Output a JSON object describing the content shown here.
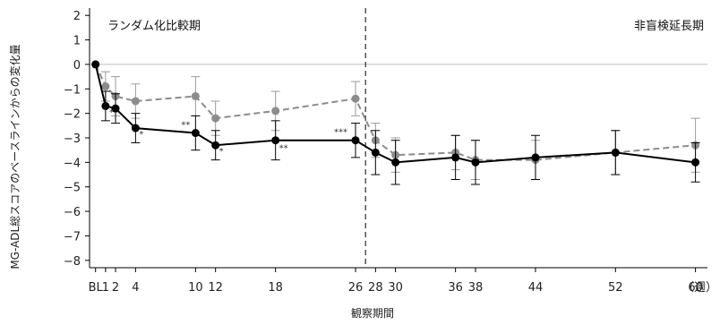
{
  "chart_data": {
    "type": "line",
    "ylabel": "MG-ADL総スコアのベースラインからの変化量",
    "xlabel": "観察期間",
    "x_unit_label": "（週）",
    "ylim": [
      -8.3,
      2.3
    ],
    "y_ticks": [
      2,
      1,
      0,
      -1,
      -2,
      -3,
      -4,
      -5,
      -6,
      -7,
      -8
    ],
    "y_tick_labels": [
      "2",
      "1",
      "0",
      "−1",
      "−2",
      "−3",
      "−4",
      "−5",
      "−6",
      "−7",
      "−8"
    ],
    "x_ticks": [
      0,
      1,
      2,
      4,
      10,
      12,
      18,
      26,
      28,
      30,
      36,
      38,
      44,
      52,
      60
    ],
    "x_tick_labels": [
      "BL",
      "1",
      "2",
      "4",
      "10",
      "12",
      "18",
      "26",
      "28",
      "30",
      "36",
      "38",
      "44",
      "52",
      "60"
    ],
    "xlim": [
      -0.6,
      61.2
    ],
    "divider_x": 27,
    "regions": [
      {
        "label": "ランダム化比較期",
        "anchor": "left"
      },
      {
        "label": "非盲検延長期",
        "anchor": "right"
      }
    ],
    "series": [
      {
        "style": "solid",
        "color": "#000000",
        "x": [
          0,
          1,
          2,
          4,
          10,
          12,
          18,
          26,
          28,
          30,
          36,
          38,
          44,
          52,
          60
        ],
        "y": [
          0,
          -1.7,
          -1.8,
          -2.6,
          -2.8,
          -3.3,
          -3.1,
          -3.1,
          -3.6,
          -4.0,
          -3.8,
          -4.0,
          -3.8,
          -3.6,
          -4.0
        ],
        "err": [
          0,
          0.6,
          0.6,
          0.6,
          0.7,
          0.6,
          0.8,
          0.7,
          0.9,
          0.9,
          0.9,
          0.9,
          0.9,
          0.9,
          0.8
        ]
      },
      {
        "style": "dashed",
        "color": "#8c8c8c",
        "x": [
          0,
          1,
          2,
          4,
          10,
          12,
          18,
          26,
          28,
          30,
          36,
          38,
          44,
          52,
          60
        ],
        "y": [
          0,
          -0.9,
          -1.3,
          -1.5,
          -1.3,
          -2.2,
          -1.9,
          -1.4,
          -3.1,
          -3.7,
          -3.6,
          -3.9,
          -3.9,
          -3.6,
          -3.3
        ],
        "err": [
          0,
          0.6,
          0.8,
          0.7,
          0.8,
          0.7,
          0.8,
          0.7,
          0.7,
          0.7,
          0.7,
          0.8,
          0.8,
          0.9,
          1.1
        ]
      }
    ],
    "significance": [
      {
        "x": 1,
        "y": -1.7,
        "label": "*",
        "dx": 4,
        "dy": 10
      },
      {
        "x": 4,
        "y": -2.6,
        "label": "*",
        "dx": 4,
        "dy": 10
      },
      {
        "x": 10,
        "y": -2.8,
        "label": "**",
        "dx": -16,
        "dy": -6
      },
      {
        "x": 12,
        "y": -3.3,
        "label": "*",
        "dx": 4,
        "dy": 10
      },
      {
        "x": 18,
        "y": -3.1,
        "label": "**",
        "dx": 4,
        "dy": 12
      },
      {
        "x": 26,
        "y": -3.1,
        "label": "***",
        "dx": -24,
        "dy": -6
      }
    ]
  }
}
